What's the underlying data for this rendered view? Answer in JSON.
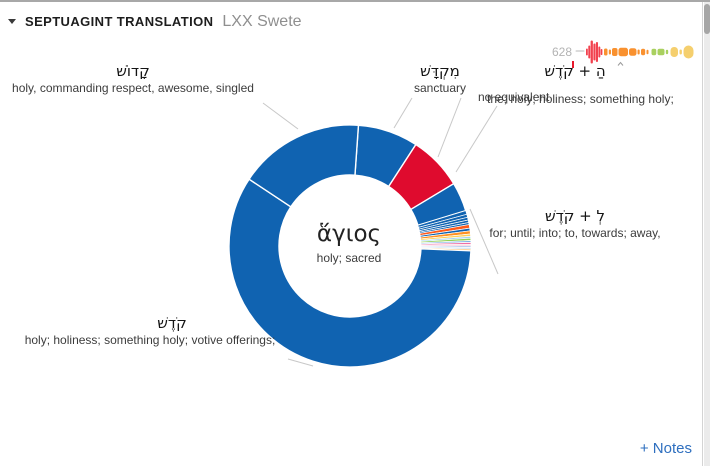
{
  "header": {
    "title": "SEPTUAGINT TRANSLATION",
    "resource": "LXX Swete"
  },
  "footer": {
    "notes_link": "+ Notes"
  },
  "colors": {
    "slice_blue": "#1063b1",
    "slice_red": "#df0b2e",
    "link_blue": "#2e6fbf",
    "leader_line": "#c8c8c8"
  },
  "chart_data": [
    {
      "type": "pie",
      "subtype": "donut",
      "title": "",
      "center_label": {
        "lemma": "ἅγιος",
        "gloss": "holy; sacred"
      },
      "legend_position": "callout-labels",
      "slices": [
        {
          "id": "miqdash",
          "hebrew": "מִקְדָּשׁ",
          "gloss": "sanctuary",
          "color": "#1063b1",
          "start_deg": 4,
          "end_deg": 33
        },
        {
          "id": "no-equivalent",
          "label": "no equivalent",
          "color": "#df0b2e",
          "start_deg": 33,
          "end_deg": 59
        },
        {
          "id": "ha-qodesh",
          "hebrew": "הַ + קֹדֶשׁ",
          "gloss": "the; holy; holiness; something holy;",
          "color": "#1063b1",
          "start_deg": 59,
          "end_deg": 73
        },
        {
          "id": "le-qodesh",
          "hebrew": "לְ + קֹדֶשׁ",
          "gloss": "for; until; into; to, towards; away,",
          "color": "#1063b1",
          "start_deg": 73,
          "end_deg": 74.8
        },
        {
          "id": "minor-01",
          "color": "#1063b1",
          "start_deg": 74.8,
          "end_deg": 76.3
        },
        {
          "id": "minor-02",
          "color": "#1063b1",
          "start_deg": 76.3,
          "end_deg": 77.6
        },
        {
          "id": "minor-03",
          "color": "#1063b1",
          "start_deg": 77.6,
          "end_deg": 78.8
        },
        {
          "id": "minor-04",
          "color": "#1063b1",
          "start_deg": 78.8,
          "end_deg": 79.8
        },
        {
          "id": "minor-05",
          "color": "#fd5a1c",
          "start_deg": 79.8,
          "end_deg": 81.5
        },
        {
          "id": "minor-06",
          "color": "#1063b1",
          "start_deg": 81.5,
          "end_deg": 82.8
        },
        {
          "id": "minor-07",
          "color": "#ff9122",
          "start_deg": 82.8,
          "end_deg": 84.3
        },
        {
          "id": "minor-08",
          "color": "#fecf55",
          "start_deg": 84.3,
          "end_deg": 85.4
        },
        {
          "id": "minor-09",
          "color": "#a6d4f2",
          "start_deg": 85.4,
          "end_deg": 86.3
        },
        {
          "id": "minor-10",
          "color": "#94d155",
          "start_deg": 86.3,
          "end_deg": 87.4
        },
        {
          "id": "minor-11",
          "color": "#7fb3e6",
          "start_deg": 87.4,
          "end_deg": 88.3
        },
        {
          "id": "minor-12",
          "color": "#ef6fa5",
          "start_deg": 88.3,
          "end_deg": 89.2
        },
        {
          "id": "minor-13",
          "color": "#f6bed2",
          "start_deg": 89.2,
          "end_deg": 90
        },
        {
          "id": "minor-14",
          "color": "#94b4e4",
          "start_deg": 90,
          "end_deg": 90.7
        },
        {
          "id": "minor-15",
          "color": "#c3ddf4",
          "start_deg": 90.7,
          "end_deg": 91.5
        },
        {
          "id": "minor-16",
          "color": "#ffba5e",
          "start_deg": 91.5,
          "end_deg": 92.3
        },
        {
          "id": "qodesh",
          "hebrew": "קֹדֶשׁ",
          "gloss": "holy; holiness; something holy; votive offerings;",
          "color": "#1063b1",
          "start_deg": 92.3,
          "end_deg": 303.5
        },
        {
          "id": "qadosh",
          "hebrew": "קָדוֹשׁ",
          "gloss": "holy, commanding respect, awesome, singled",
          "color": "#1063b1",
          "start_deg": 303.5,
          "end_deg": 364
        }
      ]
    },
    {
      "type": "bar",
      "name": "frequency-distribution-sparkline",
      "count_label": "628",
      "bars": [
        {
          "x": 0.5,
          "y": 12.2,
          "w": 9,
          "h": 1.6,
          "rx": 0.8,
          "c": "#cfcfcf"
        },
        {
          "x": 11,
          "y": 10.5,
          "w": 1.8,
          "h": 7,
          "rx": 0.9,
          "c": "#f2424f"
        },
        {
          "x": 13.3,
          "y": 7.5,
          "w": 1.9,
          "h": 13,
          "rx": 0.9,
          "c": "#f2424f"
        },
        {
          "x": 15.6,
          "y": 2.5,
          "w": 2.3,
          "h": 23,
          "rx": 1.1,
          "c": "#f2424f"
        },
        {
          "x": 18.4,
          "y": 5.5,
          "w": 2.1,
          "h": 17,
          "rx": 1,
          "c": "#f2424f"
        },
        {
          "x": 20.9,
          "y": 4,
          "w": 2.1,
          "h": 20,
          "rx": 1,
          "c": "#f2424f"
        },
        {
          "x": 23.4,
          "y": 8.5,
          "w": 1.9,
          "h": 11,
          "rx": 0.9,
          "c": "#f2424f"
        },
        {
          "x": 25.7,
          "y": 11,
          "w": 1.7,
          "h": 6,
          "rx": 0.8,
          "c": "#f2424f"
        },
        {
          "x": 29,
          "y": 10.5,
          "w": 3.5,
          "h": 7,
          "rx": 1.5,
          "c": "#f9912f"
        },
        {
          "x": 33.8,
          "y": 11.5,
          "w": 2.2,
          "h": 5,
          "rx": 1.1,
          "c": "#f9912f"
        },
        {
          "x": 37,
          "y": 10,
          "w": 5.5,
          "h": 8,
          "rx": 2,
          "c": "#f9912f"
        },
        {
          "x": 43.5,
          "y": 9.8,
          "w": 9.5,
          "h": 8.4,
          "rx": 2.5,
          "c": "#f9912f"
        },
        {
          "x": 54,
          "y": 10.2,
          "w": 7.5,
          "h": 7.6,
          "rx": 2.5,
          "c": "#f9912f"
        },
        {
          "x": 62.5,
          "y": 11.5,
          "w": 2.2,
          "h": 5,
          "rx": 1.1,
          "c": "#f9912f"
        },
        {
          "x": 66,
          "y": 10.8,
          "w": 4.2,
          "h": 6.4,
          "rx": 1.8,
          "c": "#f9912f"
        },
        {
          "x": 71.5,
          "y": 11.8,
          "w": 2,
          "h": 4.4,
          "rx": 1,
          "c": "#f9912f"
        },
        {
          "x": 76.5,
          "y": 10.8,
          "w": 4.8,
          "h": 6.4,
          "rx": 1.8,
          "c": "#a9d05f"
        },
        {
          "x": 82.5,
          "y": 10.8,
          "w": 7,
          "h": 6.4,
          "rx": 2,
          "c": "#a9d05f"
        },
        {
          "x": 90.8,
          "y": 11.8,
          "w": 2.4,
          "h": 4.4,
          "rx": 1.2,
          "c": "#a9d05f"
        },
        {
          "x": 95.5,
          "y": 9,
          "w": 7.5,
          "h": 10,
          "rx": 3.5,
          "c": "#f5cf6e"
        },
        {
          "x": 104.5,
          "y": 11.5,
          "w": 2.4,
          "h": 5,
          "rx": 1.2,
          "c": "#f5cf6e"
        },
        {
          "x": 108.5,
          "y": 7.5,
          "w": 10,
          "h": 13,
          "rx": 5,
          "c": "#f5cf6e"
        }
      ]
    }
  ]
}
